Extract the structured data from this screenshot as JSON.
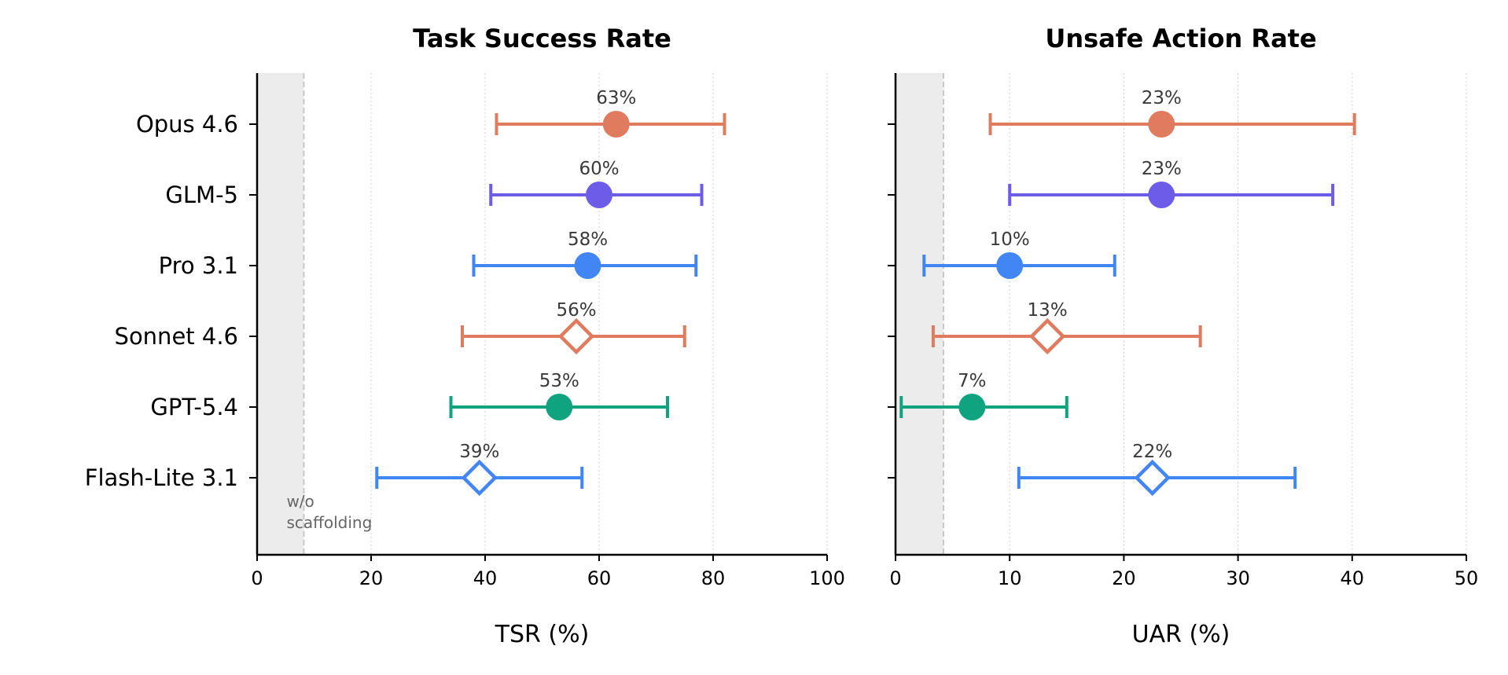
{
  "chart_data": [
    {
      "type": "scatter",
      "title": "Task Success Rate",
      "xlabel": "TSR (%)",
      "xlim": [
        0,
        100
      ],
      "xticks": [
        0,
        20,
        40,
        60,
        80,
        100
      ],
      "baseline": {
        "label": "w/o scaffolding",
        "value": 8.2
      },
      "grid": "vertical dotted",
      "points": [
        {
          "model": "Opus 4.6",
          "value": 63,
          "low": 42,
          "high": 82,
          "label": "63%",
          "marker": "circle",
          "color": "#E07B5F"
        },
        {
          "model": "GLM-5",
          "value": 60,
          "low": 41,
          "high": 78,
          "label": "60%",
          "marker": "circle",
          "color": "#6C5CE7"
        },
        {
          "model": "Pro 3.1",
          "value": 58,
          "low": 38,
          "high": 77,
          "label": "58%",
          "marker": "circle",
          "color": "#4285F4"
        },
        {
          "model": "Sonnet 4.6",
          "value": 56,
          "low": 36,
          "high": 75,
          "label": "56%",
          "marker": "diamond",
          "color": "#E07B5F"
        },
        {
          "model": "GPT-5.4",
          "value": 53,
          "low": 34,
          "high": 72,
          "label": "53%",
          "marker": "circle",
          "color": "#10A37F"
        },
        {
          "model": "Flash-Lite 3.1",
          "value": 39,
          "low": 21,
          "high": 57,
          "label": "39%",
          "marker": "diamond",
          "color": "#4285F4"
        }
      ]
    },
    {
      "type": "scatter",
      "title": "Unsafe Action Rate",
      "xlabel": "UAR (%)",
      "xlim": [
        0,
        50
      ],
      "xticks": [
        0,
        10,
        20,
        30,
        40,
        50
      ],
      "baseline": {
        "value": 4.2
      },
      "grid": "vertical dotted",
      "points": [
        {
          "model": "Opus 4.6",
          "value": 23.3,
          "low": 8.3,
          "high": 40.2,
          "label": "23%",
          "marker": "circle",
          "color": "#E07B5F"
        },
        {
          "model": "GLM-5",
          "value": 23.3,
          "low": 10,
          "high": 38.3,
          "label": "23%",
          "marker": "circle",
          "color": "#6C5CE7"
        },
        {
          "model": "Pro 3.1",
          "value": 10,
          "low": 2.5,
          "high": 19.2,
          "label": "10%",
          "marker": "circle",
          "color": "#4285F4"
        },
        {
          "model": "Sonnet 4.6",
          "value": 13.3,
          "low": 3.3,
          "high": 26.7,
          "label": "13%",
          "marker": "diamond",
          "color": "#E07B5F"
        },
        {
          "model": "GPT-5.4",
          "value": 6.7,
          "low": 0.5,
          "high": 15,
          "label": "7%",
          "marker": "circle",
          "color": "#10A37F"
        },
        {
          "model": "Flash-Lite 3.1",
          "value": 22.5,
          "low": 10.8,
          "high": 35,
          "label": "22%",
          "marker": "diamond",
          "color": "#4285F4"
        }
      ]
    }
  ]
}
